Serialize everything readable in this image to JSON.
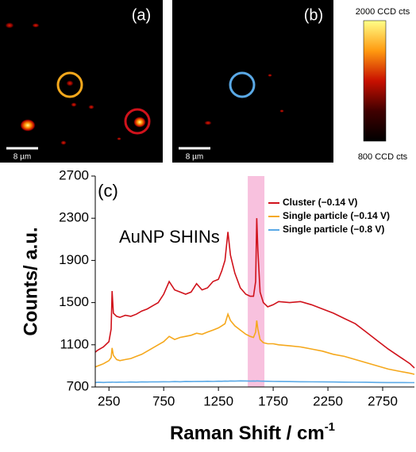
{
  "panels": [
    {
      "label": "(a)",
      "scale_bar": "8 µm"
    },
    {
      "label": "(b)",
      "scale_bar": "8 µm"
    }
  ],
  "colorbar": {
    "max_label": "2000 CCD cts",
    "min_label": "800 CCD cts"
  },
  "chart_data": {
    "type": "line",
    "panel_label": "(c)",
    "annotation": "AuNP SHINs",
    "x_label": "Raman Shift / cm",
    "x_label_sup": "-1",
    "y_label": "Counts/ a.u.",
    "xlim": [
      125,
      3040
    ],
    "ylim": [
      700,
      2700
    ],
    "xticks": [
      250,
      750,
      1250,
      1750,
      2250,
      2750
    ],
    "yticks": [
      700,
      1100,
      1500,
      1900,
      2300,
      2700
    ],
    "highlight": [
      1518,
      1670
    ],
    "highlight_color": "#f7b6d8",
    "legend": "upper right",
    "x": [
      125,
      150,
      200,
      250,
      270,
      279,
      290,
      320,
      350,
      400,
      450,
      500,
      550,
      600,
      650,
      700,
      750,
      800,
      850,
      900,
      950,
      1000,
      1050,
      1100,
      1150,
      1200,
      1250,
      1280,
      1310,
      1337,
      1360,
      1400,
      1450,
      1500,
      1540,
      1570,
      1590,
      1600,
      1610,
      1630,
      1660,
      1700,
      1750,
      1800,
      1900,
      2000,
      2100,
      2200,
      2300,
      2400,
      2500,
      2600,
      2700,
      2800,
      2900,
      3000,
      3040
    ],
    "series": [
      {
        "name": "Cluster (−0.14 V)",
        "color": "#d0121b",
        "values": [
          1030,
          1050,
          1080,
          1130,
          1250,
          1610,
          1400,
          1370,
          1360,
          1380,
          1370,
          1390,
          1420,
          1440,
          1470,
          1500,
          1580,
          1700,
          1620,
          1600,
          1580,
          1600,
          1680,
          1620,
          1640,
          1700,
          1720,
          1800,
          1900,
          2170,
          1950,
          1780,
          1640,
          1580,
          1560,
          1560,
          1700,
          2300,
          2000,
          1600,
          1500,
          1460,
          1480,
          1510,
          1500,
          1510,
          1480,
          1440,
          1400,
          1350,
          1300,
          1220,
          1140,
          1060,
          990,
          920,
          880
        ]
      },
      {
        "name": "Single particle (−0.14 V)",
        "color": "#f5a81c",
        "values": [
          890,
          900,
          920,
          950,
          980,
          1070,
          1000,
          960,
          950,
          960,
          970,
          990,
          1010,
          1040,
          1070,
          1100,
          1130,
          1180,
          1150,
          1170,
          1180,
          1190,
          1210,
          1200,
          1220,
          1240,
          1260,
          1280,
          1300,
          1390,
          1330,
          1280,
          1240,
          1200,
          1180,
          1170,
          1220,
          1330,
          1250,
          1150,
          1120,
          1110,
          1110,
          1100,
          1090,
          1080,
          1060,
          1040,
          1010,
          990,
          960,
          930,
          900,
          870,
          850,
          830,
          820
        ]
      },
      {
        "name": "Single particle (−0.8 V)",
        "color": "#5aa9e6",
        "values": [
          742,
          744,
          743,
          745,
          744,
          746,
          745,
          744,
          746,
          745,
          747,
          746,
          748,
          747,
          749,
          748,
          750,
          749,
          751,
          750,
          752,
          751,
          753,
          752,
          754,
          753,
          755,
          754,
          756,
          755,
          757,
          756,
          758,
          757,
          756,
          757,
          756,
          758,
          757,
          756,
          755,
          754,
          753,
          752,
          751,
          750,
          749,
          748,
          747,
          746,
          745,
          744,
          743,
          742,
          742,
          741,
          741
        ]
      }
    ]
  }
}
